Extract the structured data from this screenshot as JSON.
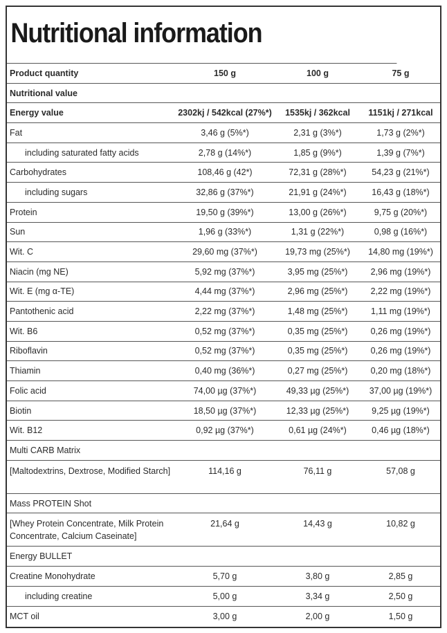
{
  "header": {
    "title": "Nutritional information"
  },
  "table": {
    "rows": [
      [
        "Product quantity",
        "150 g",
        "100 g",
        "75 g"
      ],
      [
        "Nutritional value"
      ],
      [
        "Energy value",
        "2302kj / 542kcal (27%*)",
        "1535kj / 362kcal",
        "1151kj / 271kcal"
      ],
      [
        "Fat",
        "3,46 g (5%*)",
        "2,31 g (3%*)",
        "1,73 g (2%*)"
      ],
      [
        "including saturated fatty acids",
        "2,78 g (14%*)",
        "1,85 g (9%*)",
        "1,39 g (7%*)"
      ],
      [
        "Carbohydrates",
        "108,46 g (42*)",
        "72,31 g (28%*)",
        "54,23 g (21%*)"
      ],
      [
        "including sugars",
        "32,86 g (37%*)",
        "21,91 g (24%*)",
        "16,43 g (18%*)"
      ],
      [
        "Protein",
        "19,50 g (39%*)",
        "13,00 g (26%*)",
        "9,75 g (20%*)"
      ],
      [
        "Sun",
        "1,96 g (33%*)",
        "1,31 g (22%*)",
        "0,98 g (16%*)"
      ],
      [
        "Wit. C",
        "29,60 mg (37%*)",
        "19,73 mg (25%*)",
        "14,80 mg (19%*)"
      ],
      [
        "Niacin (mg NE)",
        "5,92 mg (37%*)",
        "3,95 mg (25%*)",
        "2,96 mg (19%*)"
      ],
      [
        "Wit. E (mg α-TE)",
        "4,44 mg (37%*)",
        "2,96 mg (25%*)",
        "2,22 mg (19%*)"
      ],
      [
        "Pantothenic acid",
        "2,22 mg (37%*)",
        "1,48 mg (25%*)",
        "1,11 mg (19%*)"
      ],
      [
        "Wit. B6",
        "0,52 mg (37%*)",
        "0,35 mg (25%*)",
        "0,26 mg (19%*)"
      ],
      [
        "Riboflavin",
        "0,52 mg (37%*)",
        "0,35 mg (25%*)",
        "0,26 mg (19%*)"
      ],
      [
        "Thiamin",
        "0,40 mg (36%*)",
        "0,27 mg (25%*)",
        "0,20 mg (18%*)"
      ],
      [
        "Folic acid",
        "74,00 µg  (37%*)",
        "49,33 µg  (25%*)",
        "37,00 µg (19%*)"
      ],
      [
        "Biotin",
        "18,50 µg  (37%*)",
        "12,33 µg  (25%*)",
        "9,25 µg (19%*)"
      ],
      [
        "Wit. B12",
        "0,92 µg  (37%*)",
        "0,61 µg  (24%*)",
        "0,46 µg (18%*)"
      ],
      [
        "Multi CARB Matrix"
      ],
      [
        "[Maltodextrins, Dextrose, Modified Starch]",
        "114,16 g",
        "76,11 g",
        "57,08 g"
      ],
      [
        "Mass PROTEIN Shot"
      ],
      [
        "[Whey Protein Concentrate, Milk Protein Concentrate, Calcium Caseinate]",
        "21,64 g",
        "14,43 g",
        "10,82 g"
      ],
      [
        "Energy BULLET"
      ],
      [
        "Creatine Monohydrate",
        "5,70 g",
        "3,80 g",
        "2,85 g"
      ],
      [
        "including creatine",
        "5,00 g",
        "3,34 g",
        "2,50 g"
      ],
      [
        "MCT oil",
        "3,00 g",
        "2,00 g",
        "1,50 g"
      ]
    ]
  }
}
